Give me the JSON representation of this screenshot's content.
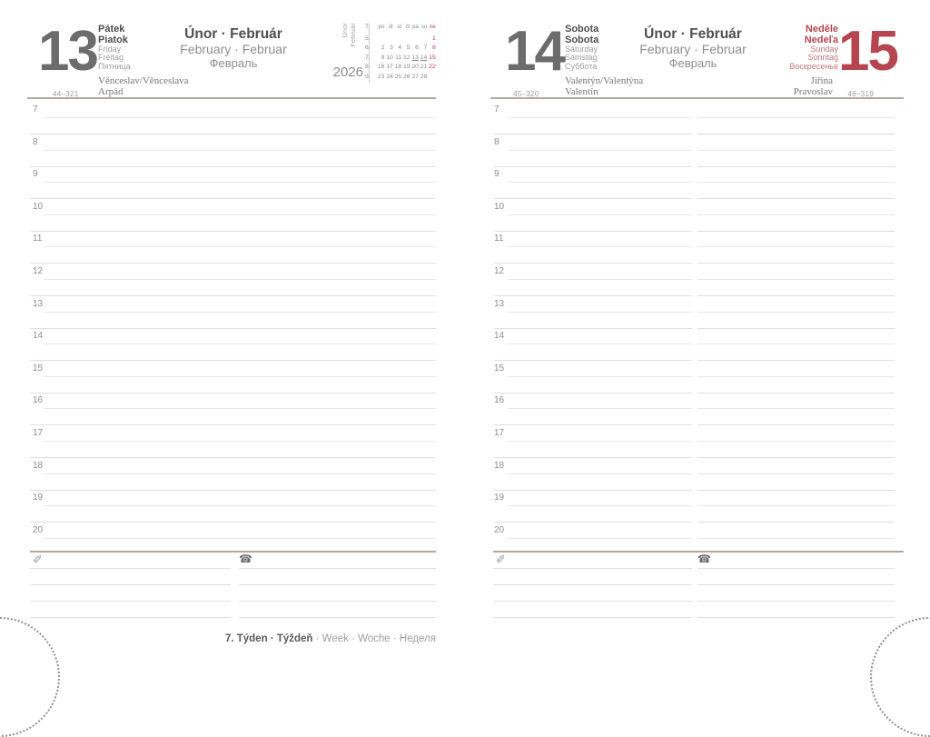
{
  "year": "2026",
  "month": {
    "cz_sk": "Únor · Február",
    "en_de": "February · Februar",
    "ru": "Февраль"
  },
  "side_tab": {
    "line1": "Únor",
    "line2": "Február"
  },
  "hours": [
    "7",
    "8",
    "9",
    "10",
    "11",
    "12",
    "13",
    "14",
    "15",
    "16",
    "17",
    "18",
    "19",
    "20"
  ],
  "days": {
    "friday": {
      "number": "13",
      "bold_names": [
        "Pátek",
        "Piatok"
      ],
      "names": [
        "Friday",
        "Freitag",
        "Пятница"
      ],
      "name_days": [
        "Věnceslav/Věnceslava",
        "Arpád"
      ],
      "year_day": "44–321"
    },
    "saturday": {
      "number": "14",
      "bold_names": [
        "Sobota",
        "Sobota"
      ],
      "names": [
        "Saturday",
        "Samstag",
        "Суббота"
      ],
      "name_days": [
        "Valentýn/Valentýna",
        "Valentín"
      ],
      "year_day": "45–320"
    },
    "sunday": {
      "number": "15",
      "bold_names": [
        "Neděle",
        "Nedeľa"
      ],
      "names": [
        "Sunday",
        "Sonntag",
        "Воскресенье"
      ],
      "name_days": [
        "Jiřina",
        "Pravoslav"
      ],
      "year_day": "46–319"
    }
  },
  "mini_calendar": {
    "corner": "T.",
    "day_headers": [
      "po",
      "út",
      "st",
      "čt",
      "pá",
      "so",
      "ne"
    ],
    "weeks": [
      {
        "num": "5.",
        "days": [
          "",
          "",
          "",
          "",
          "",
          "",
          "1"
        ]
      },
      {
        "num": "6.",
        "days": [
          "2",
          "3",
          "4",
          "5",
          "6",
          "7",
          "8"
        ]
      },
      {
        "num": "7.",
        "days": [
          "9",
          "10",
          "11",
          "12",
          "13",
          "14",
          "15"
        ]
      },
      {
        "num": "8.",
        "days": [
          "16",
          "17",
          "18",
          "19",
          "20",
          "21",
          "22"
        ]
      },
      {
        "num": "9.",
        "days": [
          "23",
          "24",
          "25",
          "26",
          "27",
          "28",
          ""
        ]
      }
    ],
    "red_days": [
      "1",
      "8",
      "15",
      "22"
    ],
    "underlined_days": [
      "13",
      "14"
    ]
  },
  "footer": {
    "bold": "7. Týden · Týždeň",
    "light": " · Week · Woche · Неделя"
  },
  "glyphs": {
    "pencil": "✐",
    "phone": "☎"
  },
  "colors": {
    "accent_red": "#b5464f",
    "rule_gray": "#b1a89f"
  }
}
